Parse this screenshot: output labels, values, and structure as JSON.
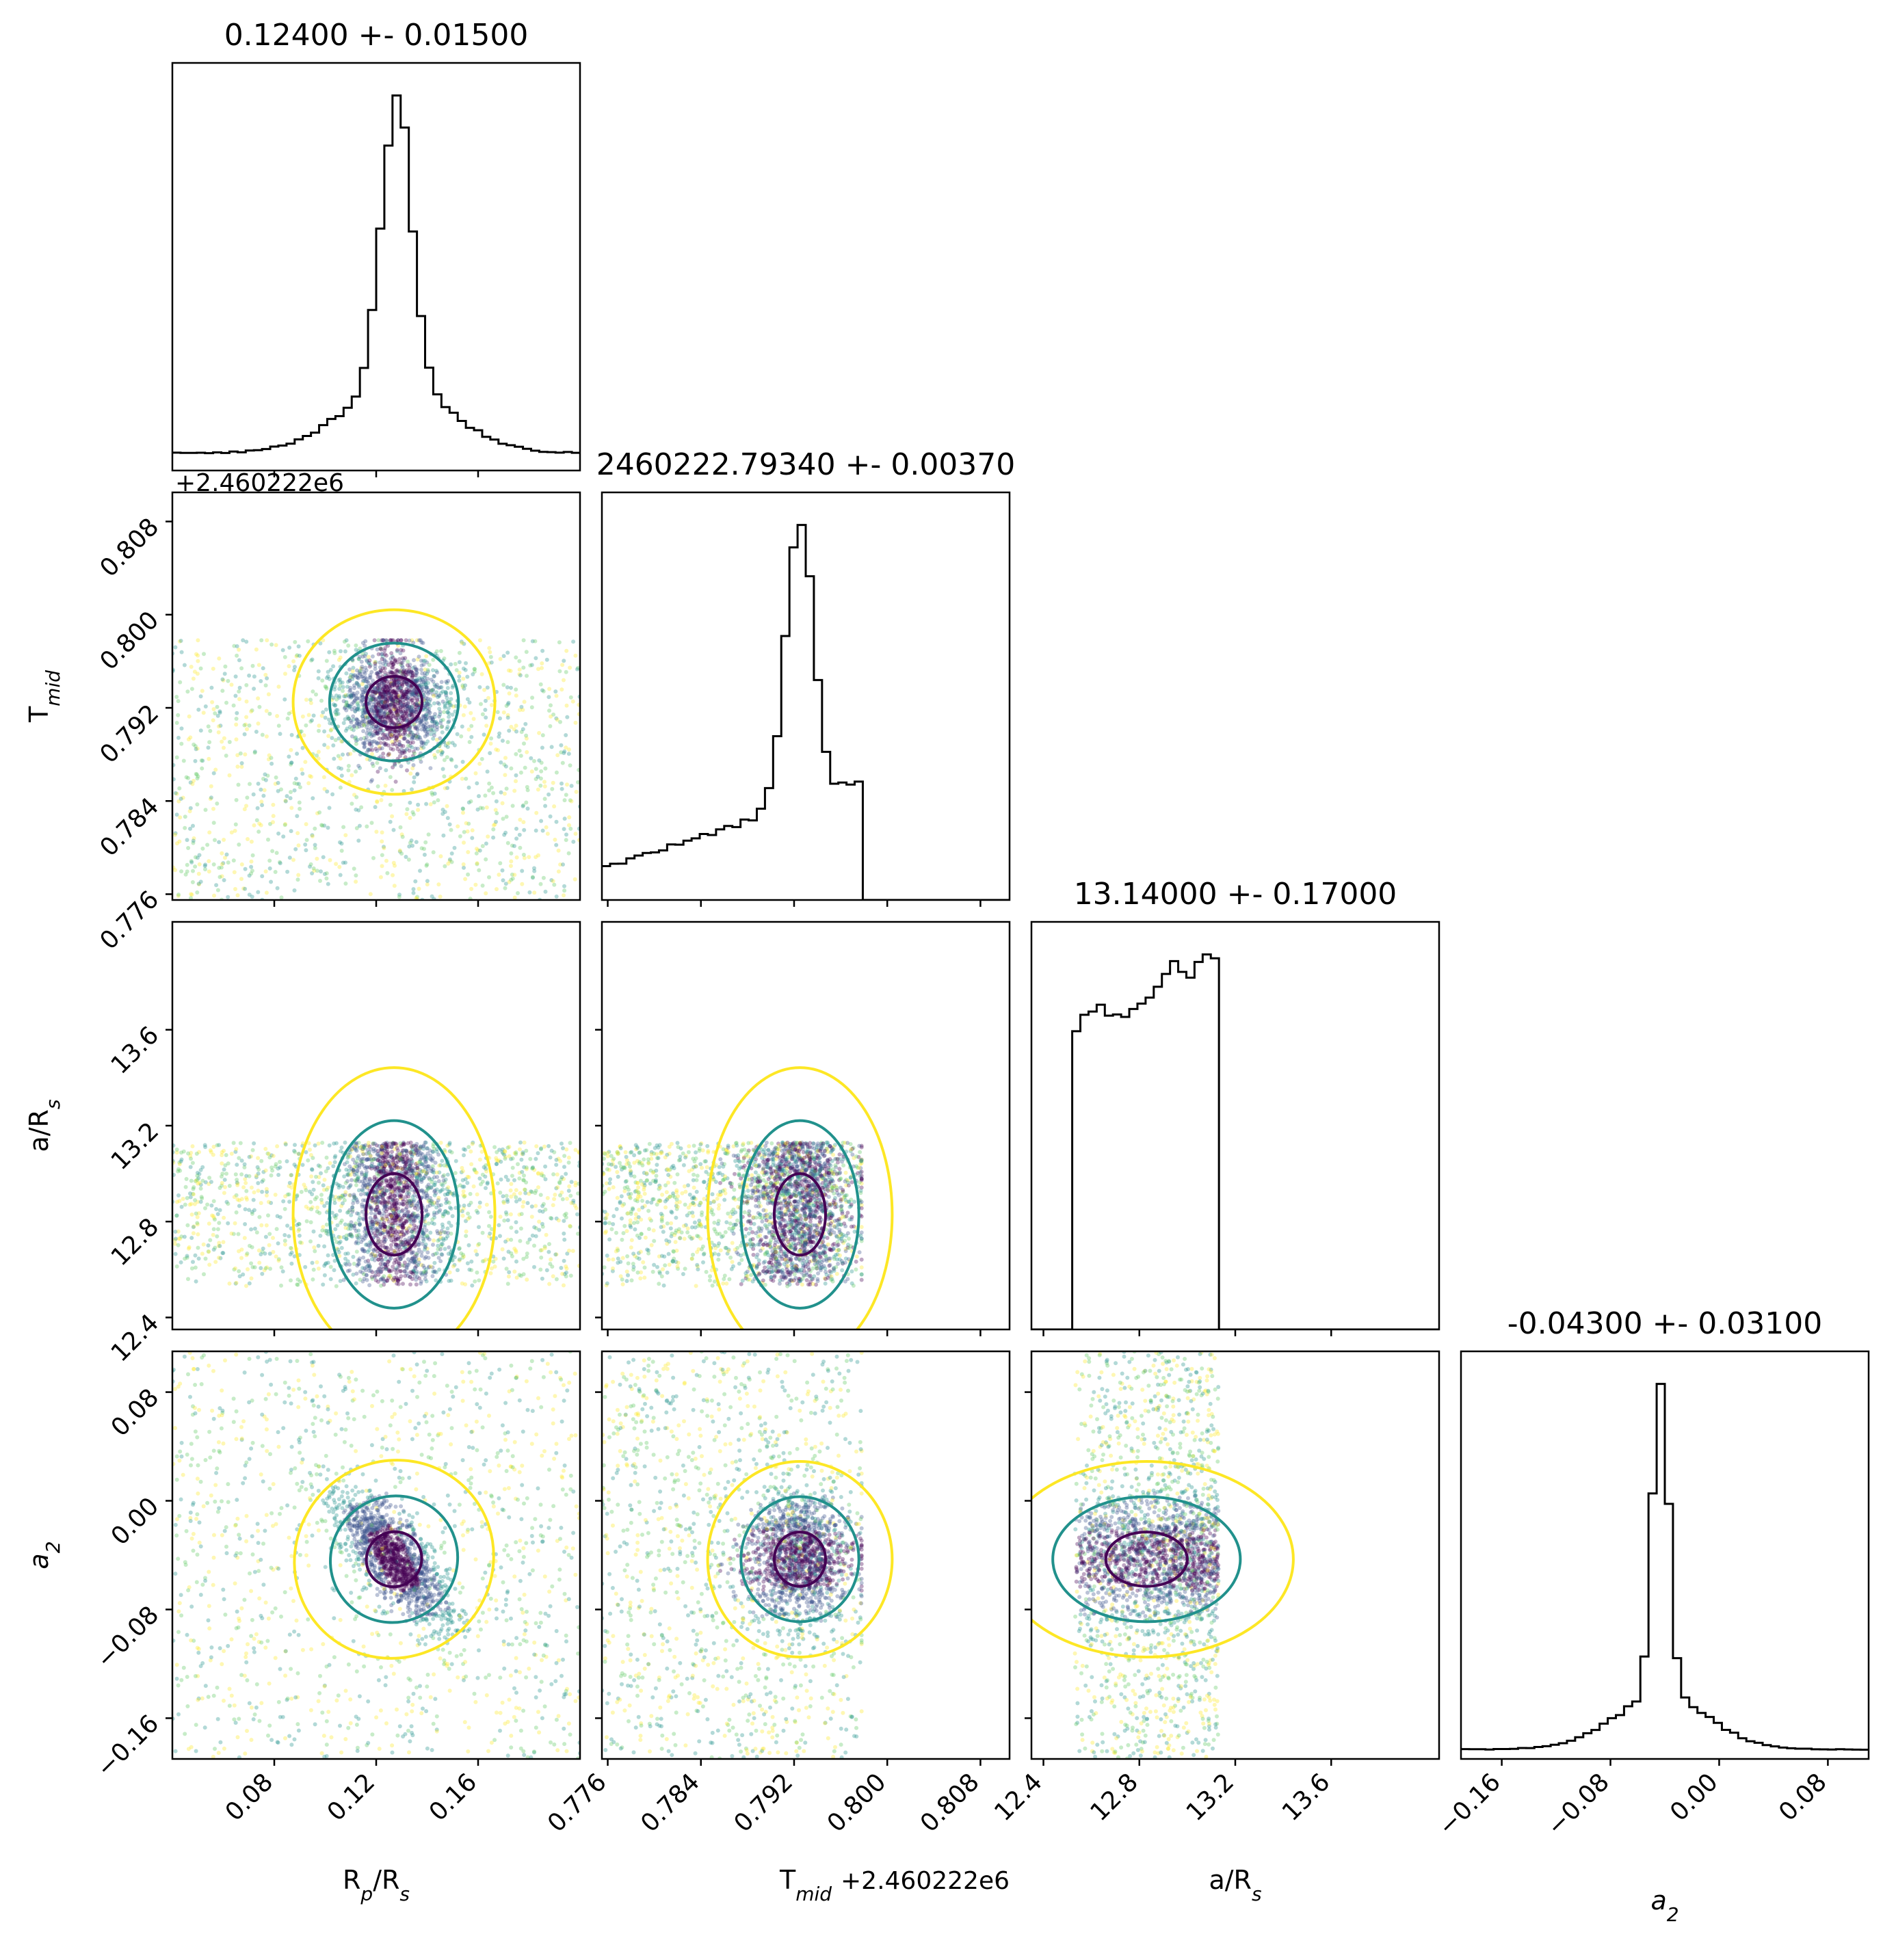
{
  "chart_data": {
    "type": "corner",
    "parameters": [
      {
        "key": "rp",
        "label": "R_p/R_s",
        "title": "0.12400 +- 0.01500",
        "range": [
          0.04,
          0.2
        ],
        "ticks": [
          0.08,
          0.12,
          0.16
        ],
        "tick_labels": [
          "0.08",
          "0.12",
          "0.16"
        ]
      },
      {
        "key": "tmid",
        "label": "T_mid",
        "title": "2460222.79340 +- 0.00370",
        "range": [
          0.7755,
          0.8105
        ],
        "ticks": [
          0.776,
          0.784,
          0.792,
          0.8,
          0.808
        ],
        "tick_labels": [
          "0.776",
          "0.784",
          "0.792",
          "0.800",
          "0.808"
        ],
        "offset": "+2.460222e6"
      },
      {
        "key": "ars",
        "label": "a/R_s",
        "title": "13.14000 +- 0.17000",
        "range": [
          12.35,
          14.05
        ],
        "ticks": [
          12.4,
          12.8,
          13.2,
          13.6
        ],
        "tick_labels": [
          "12.4",
          "12.8",
          "13.2",
          "13.6"
        ]
      },
      {
        "key": "a2",
        "label": "a_2",
        "title": "-0.04300 +- 0.03100",
        "range": [
          -0.19,
          0.11
        ],
        "ticks": [
          -0.16,
          -0.08,
          0.0,
          0.08
        ],
        "tick_labels": [
          "−0.16",
          "−0.08",
          "0.00",
          "0.08"
        ]
      }
    ],
    "histograms": {
      "rp": {
        "peak": 0.128,
        "width": 0.006,
        "tail_left": 0.07,
        "floor": 0.06
      },
      "tmid": {
        "peak": 0.7925,
        "width": 0.0012,
        "cutoff": 0.7978
      },
      "ars": {
        "low": 12.53,
        "high": 13.13,
        "trend": "rising"
      },
      "a2": {
        "peak": -0.043,
        "width": 0.006
      }
    },
    "contour_colors": [
      "#440154",
      "#21918c",
      "#fde725"
    ],
    "scatter_colormap": "viridis"
  }
}
